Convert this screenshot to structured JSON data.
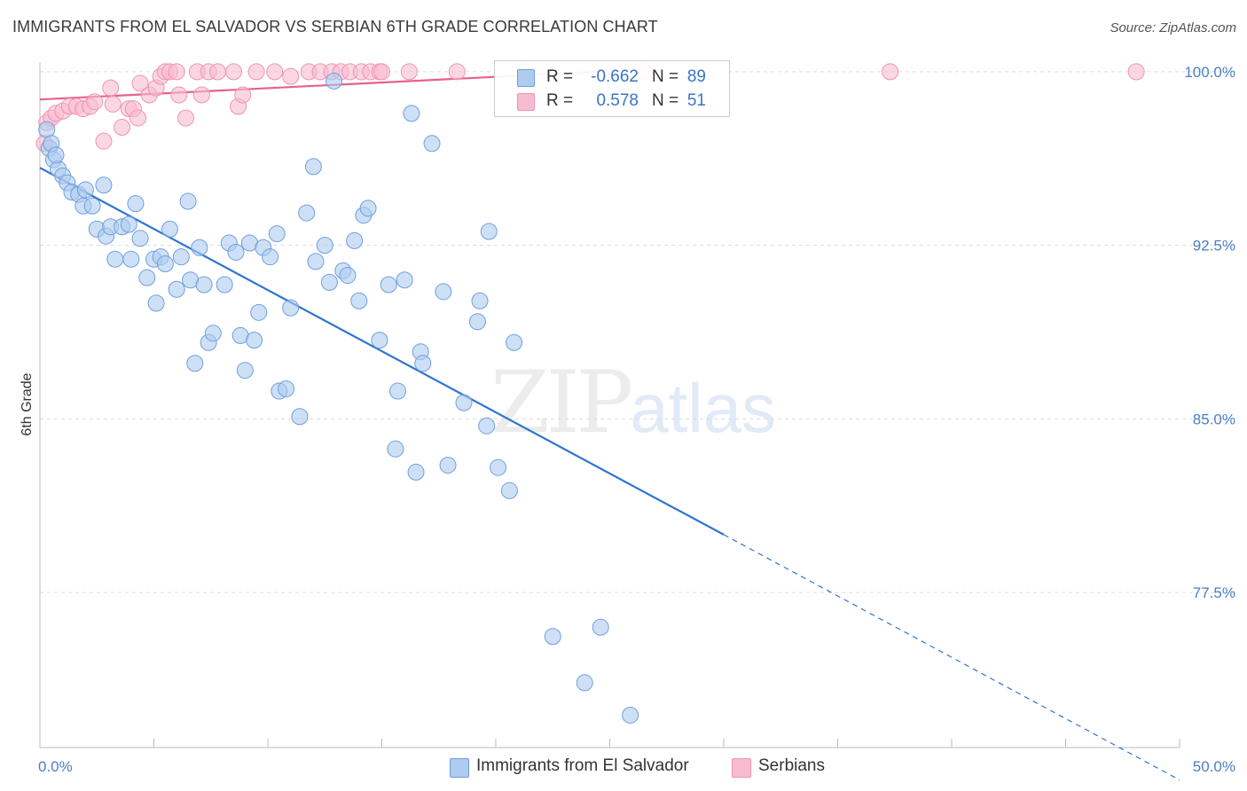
{
  "header": {
    "title": "IMMIGRANTS FROM EL SALVADOR VS SERBIAN 6TH GRADE CORRELATION CHART",
    "source": "Source: ZipAtlas.com"
  },
  "watermark": {
    "zip": "ZIP",
    "atlas": "atlas"
  },
  "legend": {
    "rows": [
      {
        "r_label": "R =",
        "r_value": "-0.662",
        "n_label": "N =",
        "n_value": "89",
        "color": "#aecbf0"
      },
      {
        "r_label": "R =",
        "r_value": "0.578",
        "n_label": "N =",
        "n_value": "51",
        "color": "#f8bcd0"
      }
    ]
  },
  "bottom_legend": {
    "items": [
      {
        "label": "Immigrants from El Salvador",
        "color": "#aecbf0"
      },
      {
        "label": "Serbians",
        "color": "#f8bcd0"
      }
    ]
  },
  "chart_data": {
    "type": "scatter",
    "title": "IMMIGRANTS FROM EL SALVADOR VS SERBIAN 6TH GRADE CORRELATION CHART",
    "xlabel": "",
    "ylabel": "6th Grade",
    "xlim": [
      0,
      50
    ],
    "ylim": [
      70.8,
      100.8
    ],
    "x_tick_labels": [
      "0.0%",
      "50.0%"
    ],
    "y_ticks": [
      77.5,
      85.0,
      92.5,
      100.0
    ],
    "y_tick_labels": [
      "77.5%",
      "85.0%",
      "92.5%",
      "100.0%"
    ],
    "grid": true,
    "legend_position": "top-center",
    "colors": {
      "blue_point": "#aecbf0",
      "blue_stroke": "#6f9fdc",
      "blue_line": "#2f74d0",
      "pink_point": "#f8bcd0",
      "pink_stroke": "#ee94b3",
      "pink_line": "#e8608e"
    },
    "series": [
      {
        "name": "Immigrants from El Salvador",
        "color": "#aecbf0",
        "trend": {
          "x": [
            0,
            30
          ],
          "y": [
            95.85,
            80.0
          ],
          "dashed_to": [
            50,
            69.4
          ]
        },
        "points": [
          [
            0.3,
            97.5
          ],
          [
            0.4,
            96.7
          ],
          [
            0.6,
            96.2
          ],
          [
            0.8,
            95.8
          ],
          [
            1.0,
            95.5
          ],
          [
            1.2,
            95.2
          ],
          [
            1.4,
            94.8
          ],
          [
            1.7,
            94.7
          ],
          [
            1.9,
            94.2
          ],
          [
            2.0,
            94.9
          ],
          [
            2.3,
            94.2
          ],
          [
            2.8,
            95.1
          ],
          [
            2.5,
            93.2
          ],
          [
            2.9,
            92.9
          ],
          [
            3.1,
            93.3
          ],
          [
            3.3,
            91.9
          ],
          [
            3.6,
            93.3
          ],
          [
            3.9,
            93.4
          ],
          [
            4.0,
            91.9
          ],
          [
            4.2,
            94.3
          ],
          [
            4.4,
            92.8
          ],
          [
            4.7,
            91.1
          ],
          [
            5.0,
            91.9
          ],
          [
            5.1,
            90.0
          ],
          [
            5.3,
            92.0
          ],
          [
            5.5,
            91.7
          ],
          [
            5.7,
            93.2
          ],
          [
            6.0,
            90.6
          ],
          [
            6.2,
            92.0
          ],
          [
            6.5,
            94.4
          ],
          [
            6.6,
            91.0
          ],
          [
            6.8,
            87.4
          ],
          [
            7.0,
            92.4
          ],
          [
            7.2,
            90.8
          ],
          [
            7.4,
            88.3
          ],
          [
            7.6,
            88.7
          ],
          [
            8.1,
            90.8
          ],
          [
            8.3,
            92.6
          ],
          [
            8.6,
            92.2
          ],
          [
            8.8,
            88.6
          ],
          [
            9.0,
            87.1
          ],
          [
            9.2,
            92.6
          ],
          [
            9.4,
            88.4
          ],
          [
            9.6,
            89.6
          ],
          [
            9.8,
            92.4
          ],
          [
            10.1,
            92.0
          ],
          [
            10.4,
            93.0
          ],
          [
            10.5,
            86.2
          ],
          [
            10.8,
            86.3
          ],
          [
            11.0,
            89.8
          ],
          [
            11.4,
            85.1
          ],
          [
            11.7,
            93.9
          ],
          [
            12.0,
            95.9
          ],
          [
            12.1,
            91.8
          ],
          [
            12.5,
            92.5
          ],
          [
            12.7,
            90.9
          ],
          [
            12.9,
            99.6
          ],
          [
            13.3,
            91.4
          ],
          [
            13.5,
            91.2
          ],
          [
            13.8,
            92.7
          ],
          [
            14.0,
            90.1
          ],
          [
            14.2,
            93.8
          ],
          [
            14.4,
            94.1
          ],
          [
            14.9,
            88.4
          ],
          [
            15.3,
            90.8
          ],
          [
            15.6,
            83.7
          ],
          [
            15.7,
            86.2
          ],
          [
            16.0,
            91.0
          ],
          [
            16.3,
            98.2
          ],
          [
            16.5,
            82.7
          ],
          [
            16.7,
            87.9
          ],
          [
            16.8,
            87.4
          ],
          [
            17.2,
            96.9
          ],
          [
            17.7,
            90.5
          ],
          [
            17.9,
            83.0
          ],
          [
            18.6,
            85.7
          ],
          [
            19.2,
            89.2
          ],
          [
            19.3,
            90.1
          ],
          [
            19.6,
            84.7
          ],
          [
            19.7,
            93.1
          ],
          [
            20.1,
            82.9
          ],
          [
            20.6,
            81.9
          ],
          [
            20.8,
            88.3
          ],
          [
            22.5,
            75.6
          ],
          [
            23.9,
            73.6
          ],
          [
            24.6,
            76.0
          ],
          [
            25.9,
            72.2
          ],
          [
            0.5,
            96.9
          ],
          [
            0.7,
            96.4
          ]
        ]
      },
      {
        "name": "Serbians",
        "color": "#f8bcd0",
        "trend": {
          "x": [
            0,
            24.5
          ],
          "y": [
            98.8,
            100.0
          ]
        },
        "points": [
          [
            0.2,
            96.9
          ],
          [
            0.3,
            97.8
          ],
          [
            0.5,
            98.0
          ],
          [
            0.7,
            98.2
          ],
          [
            1.0,
            98.3
          ],
          [
            1.3,
            98.5
          ],
          [
            1.6,
            98.5
          ],
          [
            1.9,
            98.4
          ],
          [
            2.2,
            98.5
          ],
          [
            2.4,
            98.7
          ],
          [
            2.8,
            97.0
          ],
          [
            3.1,
            99.3
          ],
          [
            3.2,
            98.6
          ],
          [
            3.6,
            97.6
          ],
          [
            3.9,
            98.4
          ],
          [
            4.1,
            98.4
          ],
          [
            4.3,
            98.0
          ],
          [
            4.4,
            99.5
          ],
          [
            4.8,
            99.0
          ],
          [
            5.1,
            99.3
          ],
          [
            5.3,
            99.8
          ],
          [
            5.5,
            100.0
          ],
          [
            5.7,
            100.0
          ],
          [
            6.0,
            100.0
          ],
          [
            6.1,
            99.0
          ],
          [
            6.4,
            98.0
          ],
          [
            6.9,
            100.0
          ],
          [
            7.1,
            99.0
          ],
          [
            7.4,
            100.0
          ],
          [
            7.8,
            100.0
          ],
          [
            8.5,
            100.0
          ],
          [
            8.7,
            98.5
          ],
          [
            8.9,
            99.0
          ],
          [
            9.5,
            100.0
          ],
          [
            10.3,
            100.0
          ],
          [
            11.0,
            99.8
          ],
          [
            11.8,
            100.0
          ],
          [
            12.3,
            100.0
          ],
          [
            12.8,
            100.0
          ],
          [
            13.2,
            100.0
          ],
          [
            13.6,
            100.0
          ],
          [
            14.1,
            100.0
          ],
          [
            14.5,
            100.0
          ],
          [
            14.9,
            100.0
          ],
          [
            15.0,
            100.0
          ],
          [
            16.2,
            100.0
          ],
          [
            18.3,
            100.0
          ],
          [
            21.3,
            100.0
          ],
          [
            26.5,
            100.0
          ],
          [
            37.3,
            100.0
          ],
          [
            48.1,
            100.0
          ]
        ]
      }
    ]
  }
}
